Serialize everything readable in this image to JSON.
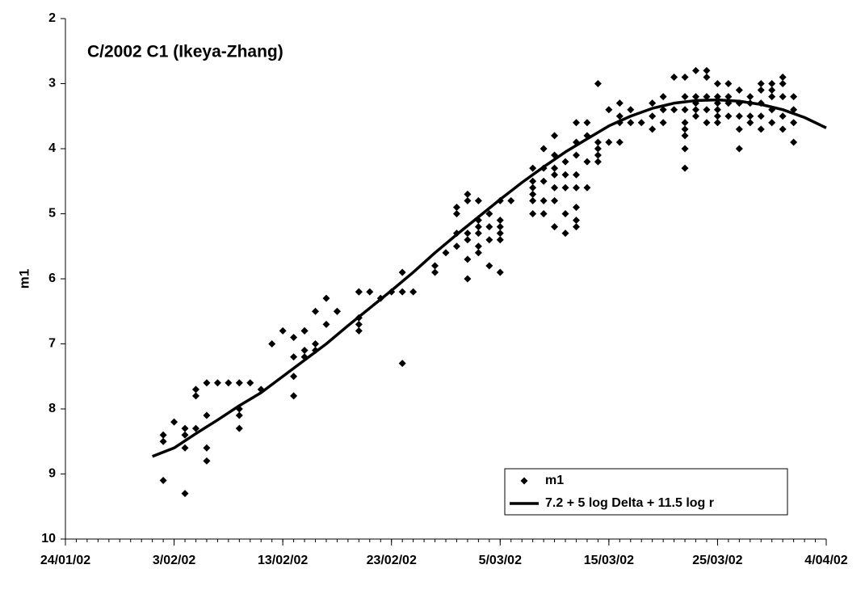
{
  "chart_data": {
    "type": "scatter",
    "title": "C/2002 C1 (Ikeya-Zhang)",
    "y_label": "m1",
    "xlim": [
      "2002-01-24",
      "2002-04-04"
    ],
    "xticks": [
      {
        "value": "2002-01-24",
        "label": "24/01/02"
      },
      {
        "value": "2002-02-03",
        "label": "3/02/02"
      },
      {
        "value": "2002-02-13",
        "label": "13/02/02"
      },
      {
        "value": "2002-02-23",
        "label": "23/02/02"
      },
      {
        "value": "2002-03-05",
        "label": "5/03/02"
      },
      {
        "value": "2002-03-15",
        "label": "15/03/02"
      },
      {
        "value": "2002-03-25",
        "label": "25/03/02"
      },
      {
        "value": "2002-04-04",
        "label": "4/04/02"
      }
    ],
    "ylim": [
      10,
      2
    ],
    "yticks": [
      2,
      3,
      4,
      5,
      6,
      7,
      8,
      9,
      10
    ],
    "legend": "bottom-right",
    "series": [
      {
        "name": "m1",
        "type": "scatter",
        "color": "#000000",
        "x": [
          "2002-02-02",
          "2002-02-02",
          "2002-02-02",
          "2002-02-03",
          "2002-02-04",
          "2002-02-04",
          "2002-02-04",
          "2002-02-04",
          "2002-02-05",
          "2002-02-05",
          "2002-02-05",
          "2002-02-06",
          "2002-02-06",
          "2002-02-06",
          "2002-02-06",
          "2002-02-07",
          "2002-02-08",
          "2002-02-09",
          "2002-02-09",
          "2002-02-09",
          "2002-02-09",
          "2002-02-10",
          "2002-02-11",
          "2002-02-12",
          "2002-02-13",
          "2002-02-14",
          "2002-02-14",
          "2002-02-14",
          "2002-02-14",
          "2002-02-15",
          "2002-02-15",
          "2002-02-15",
          "2002-02-15",
          "2002-02-16",
          "2002-02-16",
          "2002-02-16",
          "2002-02-17",
          "2002-02-17",
          "2002-02-18",
          "2002-02-18",
          "2002-02-20",
          "2002-02-20",
          "2002-02-20",
          "2002-02-20",
          "2002-02-20",
          "2002-02-21",
          "2002-02-22",
          "2002-02-23",
          "2002-02-24",
          "2002-02-24",
          "2002-02-24",
          "2002-02-25",
          "2002-02-27",
          "2002-02-27",
          "2002-02-28",
          "2002-03-01",
          "2002-03-01",
          "2002-03-01",
          "2002-03-01",
          "2002-03-02",
          "2002-03-02",
          "2002-03-02",
          "2002-03-02",
          "2002-03-02",
          "2002-03-02",
          "2002-03-03",
          "2002-03-03",
          "2002-03-03",
          "2002-03-03",
          "2002-03-03",
          "2002-03-03",
          "2002-03-04",
          "2002-03-04",
          "2002-03-04",
          "2002-03-04",
          "2002-03-05",
          "2002-03-05",
          "2002-03-05",
          "2002-03-05",
          "2002-03-05",
          "2002-03-05",
          "2002-03-06",
          "2002-03-08",
          "2002-03-08",
          "2002-03-08",
          "2002-03-08",
          "2002-03-08",
          "2002-03-08",
          "2002-03-09",
          "2002-03-09",
          "2002-03-09",
          "2002-03-09",
          "2002-03-09",
          "2002-03-10",
          "2002-03-10",
          "2002-03-10",
          "2002-03-10",
          "2002-03-10",
          "2002-03-10",
          "2002-03-10",
          "2002-03-11",
          "2002-03-11",
          "2002-03-11",
          "2002-03-11",
          "2002-03-11",
          "2002-03-12",
          "2002-03-12",
          "2002-03-12",
          "2002-03-12",
          "2002-03-12",
          "2002-03-12",
          "2002-03-12",
          "2002-03-12",
          "2002-03-13",
          "2002-03-13",
          "2002-03-13",
          "2002-03-13",
          "2002-03-14",
          "2002-03-14",
          "2002-03-14",
          "2002-03-14",
          "2002-03-14",
          "2002-03-15",
          "2002-03-15",
          "2002-03-16",
          "2002-03-16",
          "2002-03-16",
          "2002-03-16",
          "2002-03-17",
          "2002-03-17",
          "2002-03-18",
          "2002-03-19",
          "2002-03-19",
          "2002-03-19",
          "2002-03-20",
          "2002-03-20",
          "2002-03-20",
          "2002-03-21",
          "2002-03-21",
          "2002-03-22",
          "2002-03-22",
          "2002-03-22",
          "2002-03-22",
          "2002-03-22",
          "2002-03-22",
          "2002-03-22",
          "2002-03-22",
          "2002-03-23",
          "2002-03-23",
          "2002-03-23",
          "2002-03-23",
          "2002-03-23",
          "2002-03-24",
          "2002-03-24",
          "2002-03-24",
          "2002-03-24",
          "2002-03-24",
          "2002-03-25",
          "2002-03-25",
          "2002-03-25",
          "2002-03-25",
          "2002-03-25",
          "2002-03-25",
          "2002-03-26",
          "2002-03-26",
          "2002-03-26",
          "2002-03-26",
          "2002-03-27",
          "2002-03-27",
          "2002-03-27",
          "2002-03-27",
          "2002-03-27",
          "2002-03-28",
          "2002-03-28",
          "2002-03-28",
          "2002-03-28",
          "2002-03-29",
          "2002-03-29",
          "2002-03-29",
          "2002-03-29",
          "2002-03-29",
          "2002-03-30",
          "2002-03-30",
          "2002-03-30",
          "2002-03-30",
          "2002-03-30",
          "2002-03-31",
          "2002-03-31",
          "2002-03-31",
          "2002-03-31",
          "2002-03-31",
          "2002-04-01",
          "2002-04-01",
          "2002-04-01",
          "2002-04-01"
        ],
        "values": [
          9.1,
          8.5,
          8.4,
          8.2,
          8.4,
          9.3,
          8.6,
          8.3,
          8.3,
          7.8,
          7.7,
          8.6,
          8.8,
          7.6,
          8.1,
          7.6,
          7.6,
          8.1,
          7.6,
          8.0,
          8.3,
          7.6,
          7.7,
          7.0,
          6.8,
          7.2,
          6.9,
          7.5,
          7.8,
          6.8,
          7.1,
          7.2,
          6.8,
          7.0,
          7.1,
          6.5,
          6.7,
          6.3,
          6.5,
          6.5,
          6.2,
          6.2,
          6.6,
          6.7,
          6.8,
          6.2,
          6.3,
          6.2,
          6.2,
          7.3,
          5.9,
          6.2,
          5.8,
          5.9,
          5.6,
          5.3,
          5.0,
          4.9,
          5.5,
          4.7,
          4.8,
          5.7,
          6.0,
          5.3,
          5.4,
          4.8,
          5.2,
          5.6,
          5.1,
          5.3,
          5.5,
          5.0,
          5.2,
          5.8,
          5.4,
          4.8,
          5.1,
          5.2,
          5.3,
          5.4,
          5.9,
          4.8,
          4.3,
          4.5,
          4.6,
          4.7,
          5.0,
          4.8,
          4.0,
          4.3,
          4.5,
          4.8,
          5.0,
          3.8,
          4.1,
          4.3,
          4.4,
          4.6,
          4.8,
          5.2,
          4.2,
          4.4,
          4.6,
          5.0,
          5.3,
          3.6,
          3.9,
          4.1,
          4.4,
          4.6,
          4.9,
          5.1,
          5.2,
          3.6,
          3.8,
          4.2,
          4.6,
          3.0,
          3.9,
          4.0,
          4.1,
          4.2,
          3.4,
          3.9,
          3.3,
          3.5,
          3.6,
          3.9,
          3.4,
          3.6,
          3.6,
          3.3,
          3.5,
          3.7,
          3.2,
          3.4,
          3.6,
          2.9,
          3.4,
          2.9,
          3.2,
          3.4,
          3.6,
          3.7,
          3.8,
          4.0,
          4.3,
          2.8,
          3.2,
          3.3,
          3.4,
          3.5,
          2.8,
          2.9,
          3.2,
          3.4,
          3.6,
          3.0,
          3.2,
          3.3,
          3.4,
          3.5,
          3.6,
          3.0,
          3.2,
          3.3,
          3.5,
          3.1,
          3.3,
          3.5,
          3.7,
          4.0,
          3.2,
          3.3,
          3.5,
          3.6,
          3.0,
          3.1,
          3.3,
          3.5,
          3.7,
          3.0,
          3.1,
          3.2,
          3.4,
          3.6,
          2.9,
          3.0,
          3.2,
          3.5,
          3.7,
          3.2,
          3.4,
          3.6,
          3.9
        ]
      },
      {
        "name": "7.2 + 5 log Delta + 11.5 log r",
        "type": "line",
        "color": "#000000",
        "x": [
          "2002-02-01",
          "2002-02-03",
          "2002-02-05",
          "2002-02-07",
          "2002-02-09",
          "2002-02-11",
          "2002-02-13",
          "2002-02-15",
          "2002-02-17",
          "2002-02-19",
          "2002-02-21",
          "2002-02-23",
          "2002-02-25",
          "2002-02-27",
          "2002-03-01",
          "2002-03-03",
          "2002-03-05",
          "2002-03-07",
          "2002-03-09",
          "2002-03-11",
          "2002-03-13",
          "2002-03-15",
          "2002-03-17",
          "2002-03-19",
          "2002-03-21",
          "2002-03-23",
          "2002-03-25",
          "2002-03-27",
          "2002-03-29",
          "2002-03-31",
          "2002-04-02",
          "2002-04-04"
        ],
        "values": [
          8.73,
          8.6,
          8.38,
          8.17,
          7.95,
          7.75,
          7.5,
          7.25,
          7.0,
          6.72,
          6.45,
          6.18,
          5.9,
          5.6,
          5.32,
          5.05,
          4.78,
          4.52,
          4.28,
          4.05,
          3.85,
          3.65,
          3.5,
          3.38,
          3.3,
          3.26,
          3.25,
          3.27,
          3.32,
          3.4,
          3.52,
          3.68
        ]
      }
    ]
  }
}
